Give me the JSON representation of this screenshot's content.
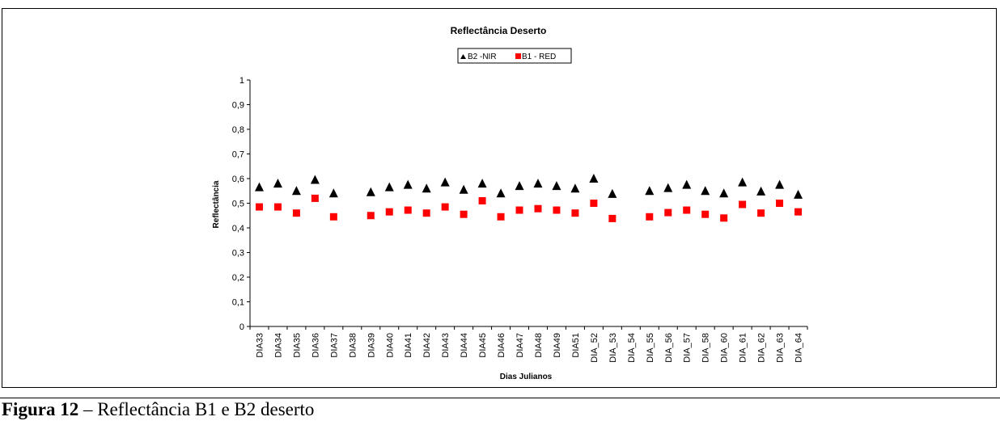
{
  "caption": {
    "label": "Figura 12",
    "text": " – Reflectância B1 e B2 deserto"
  },
  "chart_data": {
    "type": "scatter",
    "title": "Reflectância Deserto",
    "xlabel": "Dias Julianos",
    "ylabel": "Reflectância",
    "ylim": [
      0,
      1
    ],
    "yticks": [
      "0",
      "0,1",
      "0,2",
      "0,3",
      "0,4",
      "0,5",
      "0,6",
      "0,7",
      "0,8",
      "0,9",
      "1"
    ],
    "grid": false,
    "legend_position": "top-center",
    "categories": [
      "DIA33",
      "DIA34",
      "DIA35",
      "DIA36",
      "DIA37",
      "DIA38",
      "DIA39",
      "DIA40",
      "DIA41",
      "DIA42",
      "DIA43",
      "DIA44",
      "DIA45",
      "DIA46",
      "DIA47",
      "DIA48",
      "DIA49",
      "DIA51",
      "DIA_52",
      "DIA_53",
      "DIA_54",
      "DIA_55",
      "DIA_56",
      "DIA_57",
      "DIA_58",
      "DIA_60",
      "DIA_61",
      "DIA_62",
      "DIA_63",
      "DIA_64"
    ],
    "series": [
      {
        "name": "B2 -NIR",
        "marker": "triangle",
        "color": "#000000",
        "values": [
          0.565,
          0.58,
          0.55,
          0.595,
          0.54,
          null,
          0.545,
          0.565,
          0.575,
          0.56,
          0.585,
          0.555,
          0.58,
          0.54,
          0.57,
          0.58,
          0.57,
          0.56,
          0.6,
          0.538,
          null,
          0.55,
          0.562,
          0.575,
          0.55,
          0.54,
          0.585,
          0.548,
          0.575,
          0.535
        ]
      },
      {
        "name": "B1 - RED",
        "marker": "square",
        "color": "#ff0000",
        "values": [
          0.485,
          0.485,
          0.46,
          0.52,
          0.445,
          null,
          0.45,
          0.465,
          0.472,
          0.46,
          0.485,
          0.455,
          0.51,
          0.445,
          0.472,
          0.478,
          0.472,
          0.46,
          0.5,
          0.438,
          null,
          0.445,
          0.462,
          0.472,
          0.455,
          0.44,
          0.495,
          0.46,
          0.5,
          0.465
        ]
      }
    ]
  }
}
